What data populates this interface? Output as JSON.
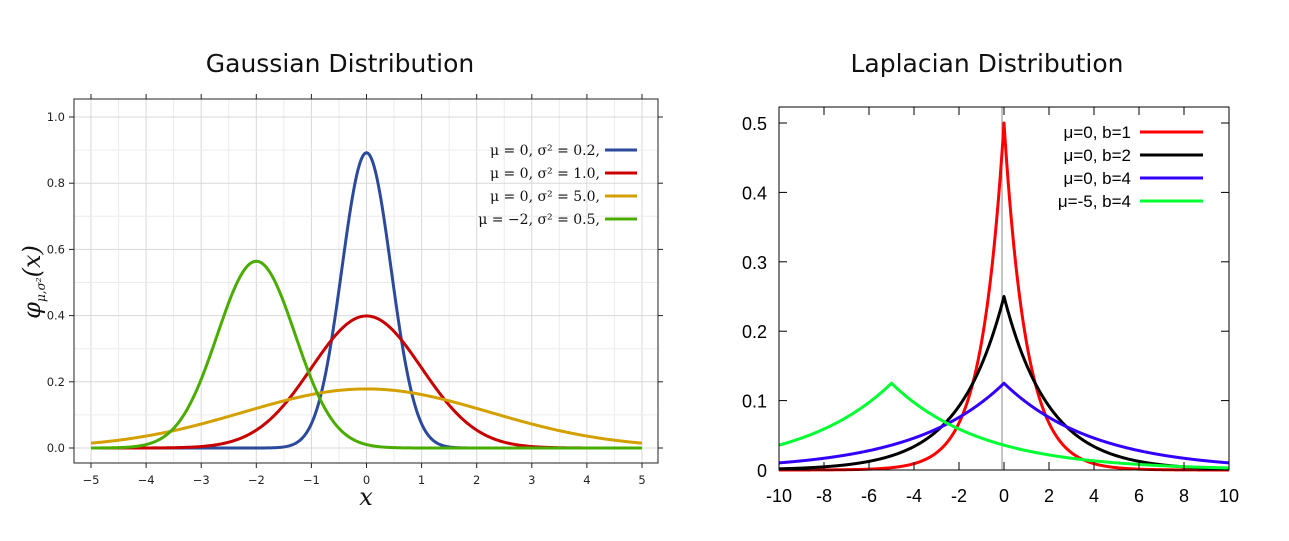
{
  "chart_data": [
    {
      "type": "line",
      "title": "Gaussian Distribution",
      "xlabel": "x",
      "ylabel": "φμ,σ²(x)",
      "ylabel_main": "φ",
      "ylabel_sub": "μ,σ²",
      "ylabel_arg": "(x)",
      "xlim": [
        -5,
        5
      ],
      "ylim": [
        0,
        1.05
      ],
      "xticks": [
        "−5",
        "−4",
        "−3",
        "−2",
        "−1",
        "0",
        "1",
        "2",
        "3",
        "4",
        "5"
      ],
      "yticks": [
        "0.0",
        "0.2",
        "0.4",
        "0.6",
        "0.8",
        "1.0"
      ],
      "grid": true,
      "legend_position": "top-right",
      "series": [
        {
          "name": "μ = 0,   σ² = 0.2,",
          "mu": 0,
          "sigma2": 0.2,
          "color": "#2b4a9c"
        },
        {
          "name": "μ = 0,   σ² = 1.0,",
          "mu": 0,
          "sigma2": 1.0,
          "color": "#c80000"
        },
        {
          "name": "μ = 0,   σ² = 5.0,",
          "mu": 0,
          "sigma2": 5.0,
          "color": "#d4a000"
        },
        {
          "name": "μ = −2,  σ² = 0.5,",
          "mu": -2,
          "sigma2": 0.5,
          "color": "#4bac00"
        }
      ]
    },
    {
      "type": "line",
      "title": "Laplacian Distribution",
      "xlabel": "",
      "ylabel": "",
      "xlim": [
        -10,
        10
      ],
      "ylim": [
        0,
        0.5
      ],
      "xticks": [
        "-10",
        "-8",
        "-6",
        "-4",
        "-2",
        "0",
        "2",
        "4",
        "6",
        "8",
        "10"
      ],
      "yticks": [
        "0",
        "0.1",
        "0.2",
        "0.3",
        "0.4",
        "0.5"
      ],
      "grid": false,
      "legend_position": "top-right",
      "series": [
        {
          "name": "μ=0, b=1",
          "mu": 0,
          "b": 1,
          "color": "#ff0000"
        },
        {
          "name": "μ=0, b=2",
          "mu": 0,
          "b": 2,
          "color": "#000000"
        },
        {
          "name": "μ=0, b=4",
          "mu": 0,
          "b": 4,
          "color": "#3300ff"
        },
        {
          "name": "μ=-5, b=4",
          "mu": -5,
          "b": 4,
          "color": "#00ff33"
        }
      ]
    }
  ]
}
